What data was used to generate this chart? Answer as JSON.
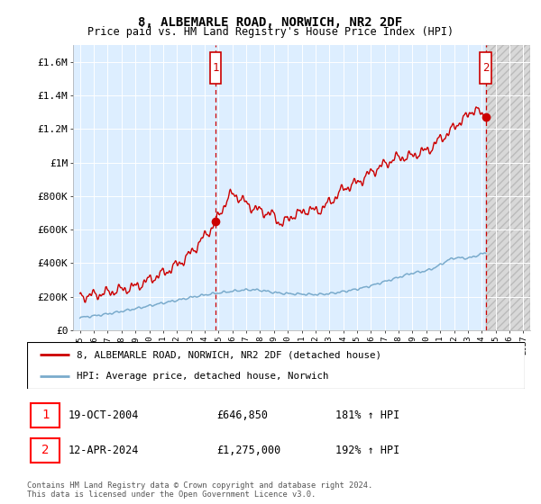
{
  "title": "8, ALBEMARLE ROAD, NORWICH, NR2 2DF",
  "subtitle": "Price paid vs. HM Land Registry's House Price Index (HPI)",
  "legend_line1": "8, ALBEMARLE ROAD, NORWICH, NR2 2DF (detached house)",
  "legend_line2": "HPI: Average price, detached house, Norwich",
  "sale1_year": 2004.8,
  "sale1_value": 646850,
  "sale1_date": "19-OCT-2004",
  "sale1_price_str": "£646,850",
  "sale1_hpi": "181% ↑ HPI",
  "sale2_year": 2024.28,
  "sale2_value": 1275000,
  "sale2_date": "12-APR-2024",
  "sale2_price_str": "£1,275,000",
  "sale2_hpi": "192% ↑ HPI",
  "footer": "Contains HM Land Registry data © Crown copyright and database right 2024.\nThis data is licensed under the Open Government Licence v3.0.",
  "red_color": "#cc0000",
  "blue_color": "#7aabcc",
  "plot_bg": "#ddeeff",
  "hatch_bg": "#cccccc",
  "ylim": [
    0,
    1700000
  ],
  "xlim_min": 1994.5,
  "xlim_max": 2027.5,
  "hatch_start": 2024.28,
  "yticks": [
    0,
    200000,
    400000,
    600000,
    800000,
    1000000,
    1200000,
    1400000,
    1600000
  ],
  "ytick_labels": [
    "£0",
    "£200K",
    "£400K",
    "£600K",
    "£800K",
    "£1M",
    "£1.2M",
    "£1.4M",
    "£1.6M"
  ],
  "xticks": [
    1995,
    1996,
    1997,
    1998,
    1999,
    2000,
    2001,
    2002,
    2003,
    2004,
    2005,
    2006,
    2007,
    2008,
    2009,
    2010,
    2011,
    2012,
    2013,
    2014,
    2015,
    2016,
    2017,
    2018,
    2019,
    2020,
    2021,
    2022,
    2023,
    2024,
    2025,
    2026,
    2027
  ]
}
